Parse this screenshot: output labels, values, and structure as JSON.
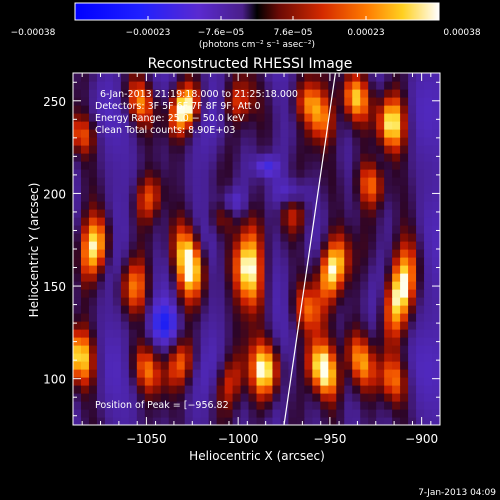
{
  "chart_data": {
    "type": "heatmap",
    "title": "Reconstructed RHESSI Image",
    "xlabel": "Heliocentric X (arcsec)",
    "ylabel": "Heliocentric Y (arcsec)",
    "xlim": [
      -1090,
      -890
    ],
    "ylim": [
      75,
      265
    ],
    "xticks": [
      -1050,
      -1000,
      -950,
      -900
    ],
    "xtick_labels": [
      "−1050",
      "−1000",
      "−950",
      "−900"
    ],
    "yticks": [
      100,
      150,
      200,
      250
    ],
    "ytick_labels": [
      "100",
      "150",
      "200",
      "250"
    ],
    "colorbar": {
      "min": -0.00038,
      "max": 0.00038,
      "tick_labels": [
        "−0.00038",
        "−0.00023",
        "−7.6e−05",
        "7.6e−05",
        "0.00023",
        "0.00038"
      ],
      "unit_label": "(photons cm⁻² s⁻¹ asec⁻²)"
    },
    "annotations": {
      "time_range": "6‑Jan‑2013 21:19:18.000 to 21:25:18.000",
      "detectors": "Detectors: 3F 5F 6F 7F 8F 9F, Att 0",
      "energy": "Energy Range: 25.0 − 50.0 keV",
      "clean": "Clean    Total counts: 8.90E+03",
      "peak": "Position of Peak = [−956.82"
    },
    "limb_line": {
      "x": [
        -975,
        -947
      ],
      "y": [
        75,
        265
      ]
    },
    "columns": [
      {
        "x": -1082,
        "blobs": [
          [
            172,
            16,
            0.85
          ],
          [
            112,
            14,
            0.8
          ],
          [
            232,
            10,
            0.45
          ]
        ]
      },
      {
        "x": -1052,
        "blobs": [
          [
            250,
            12,
            0.55
          ],
          [
            198,
            12,
            0.45
          ],
          [
            150,
            14,
            0.55
          ],
          [
            105,
            12,
            0.5
          ]
        ]
      },
      {
        "x": -1030,
        "blobs": [
          [
            246,
            12,
            0.95
          ],
          [
            162,
            18,
            1.0
          ],
          [
            108,
            12,
            0.45
          ]
        ]
      },
      {
        "x": -1004,
        "blobs": [
          [
            250,
            10,
            0.35
          ],
          [
            190,
            10,
            0.3
          ],
          [
            98,
            14,
            0.35
          ]
        ]
      },
      {
        "x": -990,
        "blobs": [
          [
            160,
            20,
            0.85
          ],
          [
            105,
            14,
            0.85
          ]
        ]
      },
      {
        "x": -966,
        "blobs": [
          [
            250,
            10,
            0.45
          ],
          [
            190,
            12,
            0.35
          ],
          [
            138,
            12,
            0.4
          ]
        ]
      },
      {
        "x": -950,
        "blobs": [
          [
            160,
            16,
            0.85
          ],
          [
            105,
            14,
            1.0
          ],
          [
            240,
            12,
            0.5
          ]
        ]
      },
      {
        "x": -932,
        "blobs": [
          [
            252,
            12,
            0.7
          ],
          [
            205,
            12,
            0.55
          ],
          [
            110,
            14,
            0.6
          ]
        ]
      },
      {
        "x": -912,
        "blobs": [
          [
            238,
            14,
            0.85
          ],
          [
            148,
            24,
            0.9
          ],
          [
            100,
            12,
            0.5
          ]
        ]
      }
    ],
    "dark_spots": [
      [
        -1005,
        195,
        8,
        8
      ],
      [
        -970,
        200,
        8,
        8
      ],
      [
        -1040,
        130,
        8,
        10
      ],
      [
        -985,
        215,
        6,
        6
      ]
    ]
  },
  "footer": {
    "date": "7‑Jan‑2013 04:09"
  }
}
